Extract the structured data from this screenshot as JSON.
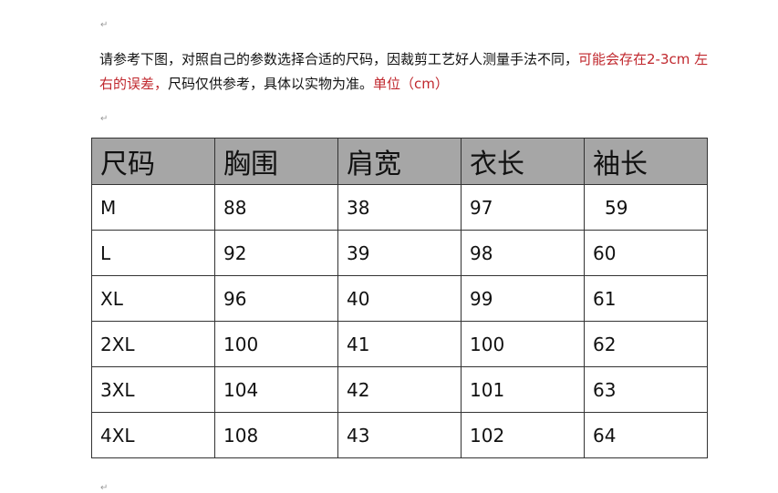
{
  "intro": {
    "text1": "请参考下图，对照自己的参数选择合适的尺码，因裁剪工艺好人测量手法不同，",
    "red1": "可能会存在2-3cm 左右的误差，",
    "text2": "尺码仅供参考，具体以实物为准。",
    "red2": "单位（cm）"
  },
  "table": {
    "headers": [
      "尺码",
      "胸围",
      "肩宽",
      "衣长",
      "袖长"
    ],
    "rows": [
      [
        "M",
        "88",
        "38",
        "97",
        "59"
      ],
      [
        "L",
        "92",
        "39",
        "98",
        "60"
      ],
      [
        "XL",
        "96",
        "40",
        "99",
        "61"
      ],
      [
        "2XL",
        "100",
        "41",
        "100",
        "62"
      ],
      [
        "3XL",
        "104",
        "42",
        "101",
        "63"
      ],
      [
        "4XL",
        "108",
        "43",
        "102",
        "64"
      ]
    ]
  },
  "colors": {
    "accent_red": "#c0272d",
    "header_bg": "#a6a6a6"
  }
}
